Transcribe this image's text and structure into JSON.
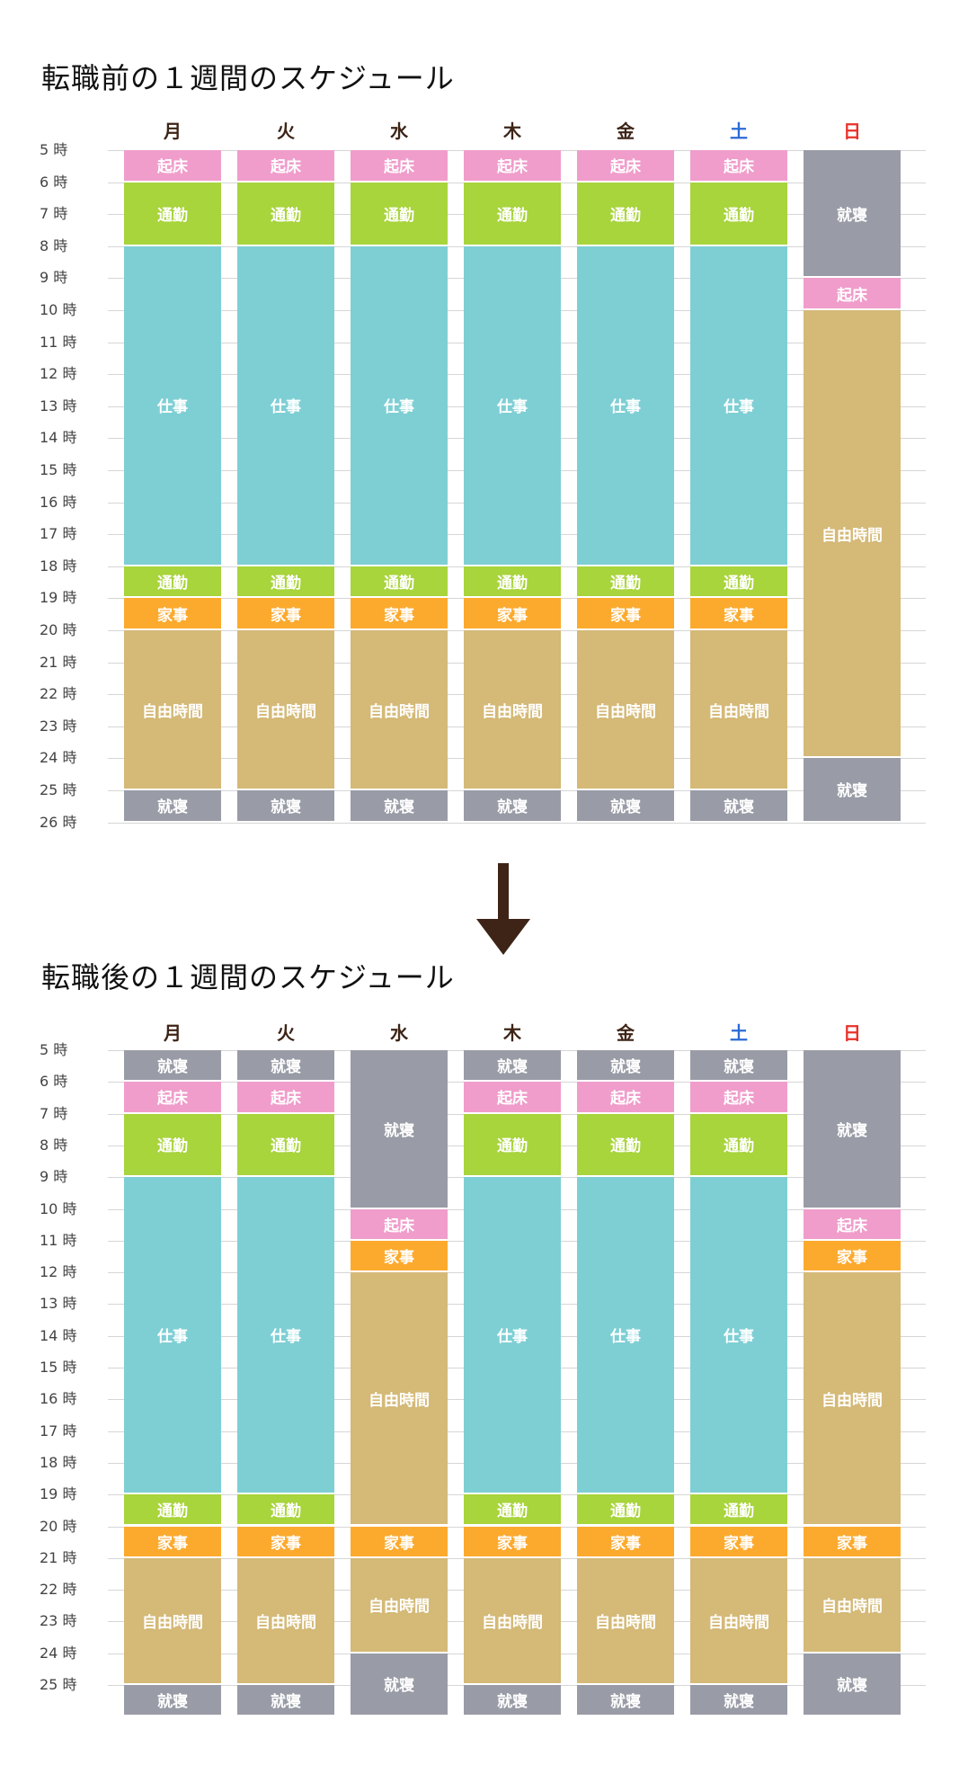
{
  "colors": {
    "起床": "#F09DCB",
    "通勤": "#A8D43C",
    "仕事": "#7ECFD4",
    "家事": "#FCAA2E",
    "自由時間": "#D4B977",
    "就寝": "#999CA6",
    "weekday": "#3D2416",
    "saturday": "#2B6BD6",
    "sunday": "#E8322B",
    "arrow": "#3D2416"
  },
  "days": [
    "月",
    "火",
    "水",
    "木",
    "金",
    "土",
    "日"
  ],
  "before": {
    "title": "転職前の１週間のスケジュール",
    "hour_labels": [
      "5 時",
      "6 時",
      "7 時",
      "8 時",
      "9 時",
      "10 時",
      "11 時",
      "12 時",
      "13 時",
      "14 時",
      "15 時",
      "16 時",
      "17 時",
      "18 時",
      "19 時",
      "20 時",
      "21 時",
      "22 時",
      "23 時",
      "24 時",
      "25 時",
      "26 時"
    ],
    "start_hour": 5,
    "end_hour": 26,
    "schedule": [
      [
        {
          "label": "起床",
          "from": 5,
          "to": 6
        },
        {
          "label": "通勤",
          "from": 6,
          "to": 8
        },
        {
          "label": "仕事",
          "from": 8,
          "to": 18
        },
        {
          "label": "通勤",
          "from": 18,
          "to": 19
        },
        {
          "label": "家事",
          "from": 19,
          "to": 20
        },
        {
          "label": "自由時間",
          "from": 20,
          "to": 25
        },
        {
          "label": "就寝",
          "from": 25,
          "to": 26
        }
      ],
      [
        {
          "label": "起床",
          "from": 5,
          "to": 6
        },
        {
          "label": "通勤",
          "from": 6,
          "to": 8
        },
        {
          "label": "仕事",
          "from": 8,
          "to": 18
        },
        {
          "label": "通勤",
          "from": 18,
          "to": 19
        },
        {
          "label": "家事",
          "from": 19,
          "to": 20
        },
        {
          "label": "自由時間",
          "from": 20,
          "to": 25
        },
        {
          "label": "就寝",
          "from": 25,
          "to": 26
        }
      ],
      [
        {
          "label": "起床",
          "from": 5,
          "to": 6
        },
        {
          "label": "通勤",
          "from": 6,
          "to": 8
        },
        {
          "label": "仕事",
          "from": 8,
          "to": 18
        },
        {
          "label": "通勤",
          "from": 18,
          "to": 19
        },
        {
          "label": "家事",
          "from": 19,
          "to": 20
        },
        {
          "label": "自由時間",
          "from": 20,
          "to": 25
        },
        {
          "label": "就寝",
          "from": 25,
          "to": 26
        }
      ],
      [
        {
          "label": "起床",
          "from": 5,
          "to": 6
        },
        {
          "label": "通勤",
          "from": 6,
          "to": 8
        },
        {
          "label": "仕事",
          "from": 8,
          "to": 18
        },
        {
          "label": "通勤",
          "from": 18,
          "to": 19
        },
        {
          "label": "家事",
          "from": 19,
          "to": 20
        },
        {
          "label": "自由時間",
          "from": 20,
          "to": 25
        },
        {
          "label": "就寝",
          "from": 25,
          "to": 26
        }
      ],
      [
        {
          "label": "起床",
          "from": 5,
          "to": 6
        },
        {
          "label": "通勤",
          "from": 6,
          "to": 8
        },
        {
          "label": "仕事",
          "from": 8,
          "to": 18
        },
        {
          "label": "通勤",
          "from": 18,
          "to": 19
        },
        {
          "label": "家事",
          "from": 19,
          "to": 20
        },
        {
          "label": "自由時間",
          "from": 20,
          "to": 25
        },
        {
          "label": "就寝",
          "from": 25,
          "to": 26
        }
      ],
      [
        {
          "label": "起床",
          "from": 5,
          "to": 6
        },
        {
          "label": "通勤",
          "from": 6,
          "to": 8
        },
        {
          "label": "仕事",
          "from": 8,
          "to": 18
        },
        {
          "label": "通勤",
          "from": 18,
          "to": 19
        },
        {
          "label": "家事",
          "from": 19,
          "to": 20
        },
        {
          "label": "自由時間",
          "from": 20,
          "to": 25
        },
        {
          "label": "就寝",
          "from": 25,
          "to": 26
        }
      ],
      [
        {
          "label": "就寝",
          "from": 5,
          "to": 9
        },
        {
          "label": "起床",
          "from": 9,
          "to": 10
        },
        {
          "label": "自由時間",
          "from": 10,
          "to": 24
        },
        {
          "label": "就寝",
          "from": 24,
          "to": 26
        }
      ]
    ]
  },
  "after": {
    "title": "転職後の１週間のスケジュール",
    "hour_labels": [
      "5 時",
      "6 時",
      "7 時",
      "8 時",
      "9 時",
      "10 時",
      "11 時",
      "12 時",
      "13 時",
      "14 時",
      "15 時",
      "16 時",
      "17 時",
      "18 時",
      "19 時",
      "20 時",
      "21 時",
      "22 時",
      "23 時",
      "24 時",
      "25 時"
    ],
    "start_hour": 5,
    "end_hour": 26,
    "schedule": [
      [
        {
          "label": "就寝",
          "from": 5,
          "to": 6
        },
        {
          "label": "起床",
          "from": 6,
          "to": 7
        },
        {
          "label": "通勤",
          "from": 7,
          "to": 9
        },
        {
          "label": "仕事",
          "from": 9,
          "to": 19
        },
        {
          "label": "通勤",
          "from": 19,
          "to": 20
        },
        {
          "label": "家事",
          "from": 20,
          "to": 21
        },
        {
          "label": "自由時間",
          "from": 21,
          "to": 25
        },
        {
          "label": "就寝",
          "from": 25,
          "to": 26
        }
      ],
      [
        {
          "label": "就寝",
          "from": 5,
          "to": 6
        },
        {
          "label": "起床",
          "from": 6,
          "to": 7
        },
        {
          "label": "通勤",
          "from": 7,
          "to": 9
        },
        {
          "label": "仕事",
          "from": 9,
          "to": 19
        },
        {
          "label": "通勤",
          "from": 19,
          "to": 20
        },
        {
          "label": "家事",
          "from": 20,
          "to": 21
        },
        {
          "label": "自由時間",
          "from": 21,
          "to": 25
        },
        {
          "label": "就寝",
          "from": 25,
          "to": 26
        }
      ],
      [
        {
          "label": "就寝",
          "from": 5,
          "to": 10
        },
        {
          "label": "起床",
          "from": 10,
          "to": 11
        },
        {
          "label": "家事",
          "from": 11,
          "to": 12
        },
        {
          "label": "自由時間",
          "from": 12,
          "to": 20
        },
        {
          "label": "家事",
          "from": 20,
          "to": 21
        },
        {
          "label": "自由時間",
          "from": 21,
          "to": 24
        },
        {
          "label": "就寝",
          "from": 24,
          "to": 26
        }
      ],
      [
        {
          "label": "就寝",
          "from": 5,
          "to": 6
        },
        {
          "label": "起床",
          "from": 6,
          "to": 7
        },
        {
          "label": "通勤",
          "from": 7,
          "to": 9
        },
        {
          "label": "仕事",
          "from": 9,
          "to": 19
        },
        {
          "label": "通勤",
          "from": 19,
          "to": 20
        },
        {
          "label": "家事",
          "from": 20,
          "to": 21
        },
        {
          "label": "自由時間",
          "from": 21,
          "to": 25
        },
        {
          "label": "就寝",
          "from": 25,
          "to": 26
        }
      ],
      [
        {
          "label": "就寝",
          "from": 5,
          "to": 6
        },
        {
          "label": "起床",
          "from": 6,
          "to": 7
        },
        {
          "label": "通勤",
          "from": 7,
          "to": 9
        },
        {
          "label": "仕事",
          "from": 9,
          "to": 19
        },
        {
          "label": "通勤",
          "from": 19,
          "to": 20
        },
        {
          "label": "家事",
          "from": 20,
          "to": 21
        },
        {
          "label": "自由時間",
          "from": 21,
          "to": 25
        },
        {
          "label": "就寝",
          "from": 25,
          "to": 26
        }
      ],
      [
        {
          "label": "就寝",
          "from": 5,
          "to": 6
        },
        {
          "label": "起床",
          "from": 6,
          "to": 7
        },
        {
          "label": "通勤",
          "from": 7,
          "to": 9
        },
        {
          "label": "仕事",
          "from": 9,
          "to": 19
        },
        {
          "label": "通勤",
          "from": 19,
          "to": 20
        },
        {
          "label": "家事",
          "from": 20,
          "to": 21
        },
        {
          "label": "自由時間",
          "from": 21,
          "to": 25
        },
        {
          "label": "就寝",
          "from": 25,
          "to": 26
        }
      ],
      [
        {
          "label": "就寝",
          "from": 5,
          "to": 10
        },
        {
          "label": "起床",
          "from": 10,
          "to": 11
        },
        {
          "label": "家事",
          "from": 11,
          "to": 12
        },
        {
          "label": "自由時間",
          "from": 12,
          "to": 20
        },
        {
          "label": "家事",
          "from": 20,
          "to": 21
        },
        {
          "label": "自由時間",
          "from": 21,
          "to": 24
        },
        {
          "label": "就寝",
          "from": 24,
          "to": 26
        }
      ]
    ]
  }
}
